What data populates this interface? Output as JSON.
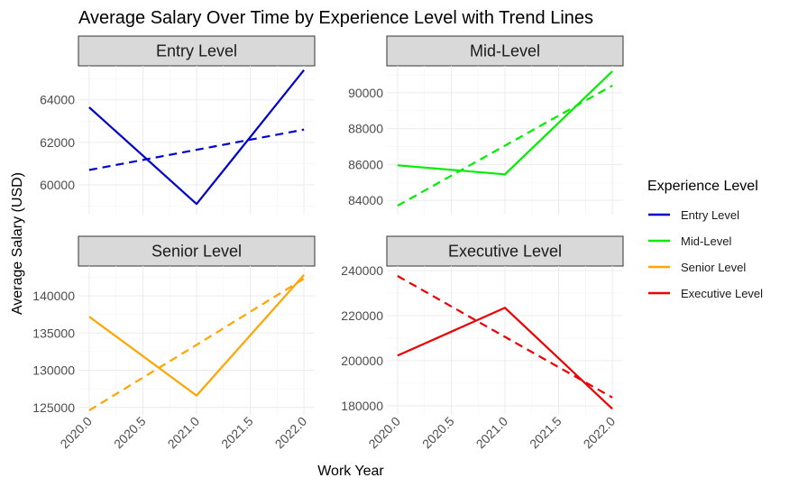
{
  "chart_data": {
    "type": "line",
    "title": "Average Salary Over Time by Experience Level with Trend Lines",
    "xlabel": "Work Year",
    "ylabel": "Average Salary (USD)",
    "legend_title": "Experience Level",
    "legend_position": "right",
    "grid": true,
    "x": [
      2020,
      2021,
      2022
    ],
    "x_ticks": [
      "2020.0",
      "2020.5",
      "2021.0",
      "2021.5",
      "2022.0"
    ],
    "panels": [
      {
        "label": "Entry Level",
        "color": "#0000CD",
        "values": [
          63650,
          59100,
          65400
        ],
        "trend": [
          60700,
          61650,
          62600
        ],
        "ylim": [
          58600,
          65600
        ],
        "y_ticks": [
          60000,
          62000,
          64000
        ]
      },
      {
        "label": "Mid-Level",
        "color": "#00EE00",
        "values": [
          85950,
          85450,
          91200
        ],
        "trend": [
          83700,
          87050,
          90400
        ],
        "ylim": [
          83200,
          91500
        ],
        "y_ticks": [
          84000,
          86000,
          88000,
          90000
        ]
      },
      {
        "label": "Senior Level",
        "color": "#FFA500",
        "values": [
          137200,
          126600,
          142800
        ],
        "trend": [
          124600,
          133400,
          142300
        ],
        "ylim": [
          124000,
          144000
        ],
        "y_ticks": [
          125000,
          130000,
          135000,
          140000
        ]
      },
      {
        "label": "Executive Level",
        "color": "#EE0000",
        "values": [
          202300,
          223500,
          178700
        ],
        "trend": [
          237600,
          210600,
          183700
        ],
        "ylim": [
          176000,
          242000
        ],
        "y_ticks": [
          180000,
          200000,
          220000,
          240000
        ]
      }
    ]
  }
}
